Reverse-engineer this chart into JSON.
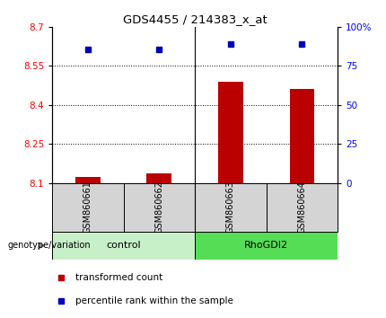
{
  "title": "GDS4455 / 214383_x_at",
  "samples": [
    "GSM860661",
    "GSM860662",
    "GSM860663",
    "GSM860664"
  ],
  "group_labels": [
    "control",
    "RhoGDI2"
  ],
  "control_color": "#c8f0c8",
  "rhoGDI2_color": "#55dd55",
  "bar_color": "#bb0000",
  "dot_color": "#0000bb",
  "bar_bottom": 8.1,
  "bar_values": [
    8.122,
    8.135,
    8.49,
    8.46
  ],
  "dot_values": [
    8.615,
    8.613,
    8.635,
    8.633
  ],
  "ylim_left": [
    8.1,
    8.7
  ],
  "ylim_right": [
    0,
    100
  ],
  "yticks_left": [
    8.1,
    8.25,
    8.4,
    8.55,
    8.7
  ],
  "ytick_labels_left": [
    "8.1",
    "8.25",
    "8.4",
    "8.55",
    "8.7"
  ],
  "yticks_right": [
    0,
    25,
    50,
    75,
    100
  ],
  "ytick_labels_right": [
    "0",
    "25",
    "50",
    "75",
    "100%"
  ],
  "grid_values": [
    8.25,
    8.4,
    8.55
  ],
  "sample_col_color": "#d4d4d4",
  "bar_width": 0.35,
  "legend_items": [
    {
      "label": "transformed count",
      "color": "#bb0000"
    },
    {
      "label": "percentile rank within the sample",
      "color": "#0000bb"
    }
  ]
}
